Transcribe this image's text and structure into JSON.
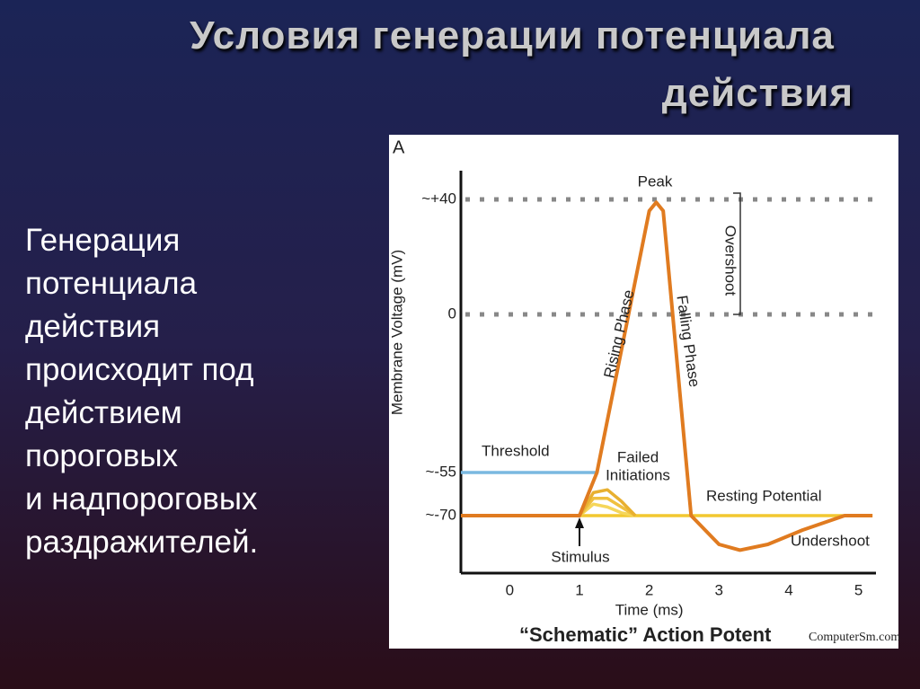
{
  "slide": {
    "title": [
      "Условия генерации потенциала",
      "действия"
    ],
    "body": [
      "Генерация",
      "потенциала",
      "действия",
      "происходит под",
      "действием",
      "пороговых",
      "и надпороговых",
      "раздражителей."
    ]
  },
  "chart_data": {
    "type": "line",
    "panel_label": "A",
    "title": "“Schematic” Action Potent",
    "credit": "ComputerSm.com",
    "x_label": "Time (ms)",
    "y_label": "Membrane Voltage (mV)",
    "xlim": [
      -0.7,
      5.25
    ],
    "ylim": [
      -90,
      50
    ],
    "xticks": [
      0,
      1,
      2,
      3,
      4,
      5
    ],
    "yticks": [
      {
        "value": 40,
        "label": "~+40"
      },
      0,
      {
        "value": -55,
        "label": "~-55"
      },
      {
        "value": -70,
        "label": "~-70"
      }
    ],
    "reference_lines": [
      40,
      0
    ],
    "annotations": [
      "Peak",
      "Rising Phase",
      "Falling Phase",
      "Overshoot",
      "Threshold",
      "Failed",
      "Initiations",
      "Resting Potential",
      "Undershoot",
      "Stimulus"
    ],
    "series": [
      {
        "color": "#7ab8e0",
        "x": [
          -0.7,
          1.25
        ],
        "values": [
          -55,
          -55
        ]
      },
      {
        "color": "#f2c830",
        "x": [
          1,
          5.2
        ],
        "values": [
          -70,
          -70
        ]
      },
      {
        "color": "#f5d65a",
        "x": [
          1,
          1.2,
          1.4,
          1.6,
          1.8
        ],
        "values": [
          -70,
          -66,
          -67,
          -69,
          -70
        ]
      },
      {
        "color": "#f0c040",
        "x": [
          1,
          1.2,
          1.4,
          1.6,
          1.8
        ],
        "values": [
          -70,
          -64,
          -64,
          -67,
          -70
        ]
      },
      {
        "color": "#e8b030",
        "x": [
          1,
          1.2,
          1.4,
          1.6,
          1.8
        ],
        "values": [
          -70,
          -62,
          -61,
          -65,
          -70
        ]
      },
      {
        "color": "#e07b20",
        "x": [
          -0.7,
          1,
          1.25,
          2.0,
          2.1,
          2.2,
          2.6,
          3.0,
          3.3,
          3.7,
          4.2,
          4.8,
          5.2
        ],
        "values": [
          -70,
          -70,
          -55,
          36,
          39,
          36,
          -70,
          -80,
          -82,
          -80,
          -75,
          -70,
          -70
        ]
      }
    ]
  }
}
